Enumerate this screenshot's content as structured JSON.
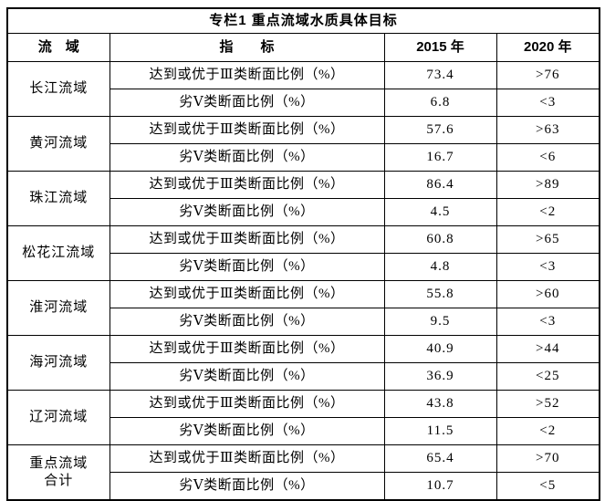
{
  "table": {
    "title": "专栏1 重点流域水质具体目标",
    "headers": {
      "basin": "流　域",
      "indicator": "指　　标",
      "y2015": "2015 年",
      "y2020": "2020 年"
    },
    "indicator_labels": {
      "good": "达到或优于Ⅲ类断面比例（%）",
      "bad": "劣Ⅴ类断面比例（%）"
    },
    "rows": [
      {
        "basin": "长江流域",
        "indicators": [
          {
            "name": "达到或优于Ⅲ类断面比例（%）",
            "y2015": "73.4",
            "y2020": ">76"
          },
          {
            "name": "劣Ⅴ类断面比例（%）",
            "y2015": "6.8",
            "y2020": "<3"
          }
        ]
      },
      {
        "basin": "黄河流域",
        "indicators": [
          {
            "name": "达到或优于Ⅲ类断面比例（%）",
            "y2015": "57.6",
            "y2020": ">63"
          },
          {
            "name": "劣Ⅴ类断面比例（%）",
            "y2015": "16.7",
            "y2020": "<6"
          }
        ]
      },
      {
        "basin": "珠江流域",
        "indicators": [
          {
            "name": "达到或优于Ⅲ类断面比例（%）",
            "y2015": "86.4",
            "y2020": ">89"
          },
          {
            "name": "劣Ⅴ类断面比例（%）",
            "y2015": "4.5",
            "y2020": "<2"
          }
        ]
      },
      {
        "basin": "松花江流域",
        "indicators": [
          {
            "name": "达到或优于Ⅲ类断面比例（%）",
            "y2015": "60.8",
            "y2020": ">65"
          },
          {
            "name": "劣Ⅴ类断面比例（%）",
            "y2015": "4.8",
            "y2020": "<3"
          }
        ]
      },
      {
        "basin": "淮河流域",
        "indicators": [
          {
            "name": "达到或优于Ⅲ类断面比例（%）",
            "y2015": "55.8",
            "y2020": ">60"
          },
          {
            "name": "劣Ⅴ类断面比例（%）",
            "y2015": "9.5",
            "y2020": "<3"
          }
        ]
      },
      {
        "basin": "海河流域",
        "indicators": [
          {
            "name": "达到或优于Ⅲ类断面比例（%）",
            "y2015": "40.9",
            "y2020": ">44"
          },
          {
            "name": "劣Ⅴ类断面比例（%）",
            "y2015": "36.9",
            "y2020": "<25"
          }
        ]
      },
      {
        "basin": "辽河流域",
        "indicators": [
          {
            "name": "达到或优于Ⅲ类断面比例（%）",
            "y2015": "43.8",
            "y2020": ">52"
          },
          {
            "name": "劣Ⅴ类断面比例（%）",
            "y2015": "11.5",
            "y2020": "<2"
          }
        ]
      },
      {
        "basin": "重点流域\n合计",
        "indicators": [
          {
            "name": "达到或优于Ⅲ类断面比例（%）",
            "y2015": "65.4",
            "y2020": ">70"
          },
          {
            "name": "劣Ⅴ类断面比例（%）",
            "y2015": "10.7",
            "y2020": "<5"
          }
        ]
      }
    ]
  },
  "chart_data": {
    "type": "table",
    "title": "专栏1 重点流域水质具体目标",
    "columns": [
      "流域",
      "指标",
      "2015年",
      "2020年"
    ],
    "rows": [
      [
        "长江流域",
        "达到或优于Ⅲ类断面比例（%）",
        "73.4",
        ">76"
      ],
      [
        "长江流域",
        "劣Ⅴ类断面比例（%）",
        "6.8",
        "<3"
      ],
      [
        "黄河流域",
        "达到或优于Ⅲ类断面比例（%）",
        "57.6",
        ">63"
      ],
      [
        "黄河流域",
        "劣Ⅴ类断面比例（%）",
        "16.7",
        "<6"
      ],
      [
        "珠江流域",
        "达到或优于Ⅲ类断面比例（%）",
        "86.4",
        ">89"
      ],
      [
        "珠江流域",
        "劣Ⅴ类断面比例（%）",
        "4.5",
        "<2"
      ],
      [
        "松花江流域",
        "达到或优于Ⅲ类断面比例（%）",
        "60.8",
        ">65"
      ],
      [
        "松花江流域",
        "劣Ⅴ类断面比例（%）",
        "4.8",
        "<3"
      ],
      [
        "淮河流域",
        "达到或优于Ⅲ类断面比例（%）",
        "55.8",
        ">60"
      ],
      [
        "淮河流域",
        "劣Ⅴ类断面比例（%）",
        "9.5",
        "<3"
      ],
      [
        "海河流域",
        "达到或优于Ⅲ类断面比例（%）",
        "40.9",
        ">44"
      ],
      [
        "海河流域",
        "劣Ⅴ类断面比例（%）",
        "36.9",
        "<25"
      ],
      [
        "辽河流域",
        "达到或优于Ⅲ类断面比例（%）",
        "43.8",
        ">52"
      ],
      [
        "辽河流域",
        "劣Ⅴ类断面比例（%）",
        "11.5",
        "<2"
      ],
      [
        "重点流域合计",
        "达到或优于Ⅲ类断面比例（%）",
        "65.4",
        ">70"
      ],
      [
        "重点流域合计",
        "劣Ⅴ类断面比例（%）",
        "10.7",
        "<5"
      ]
    ]
  }
}
